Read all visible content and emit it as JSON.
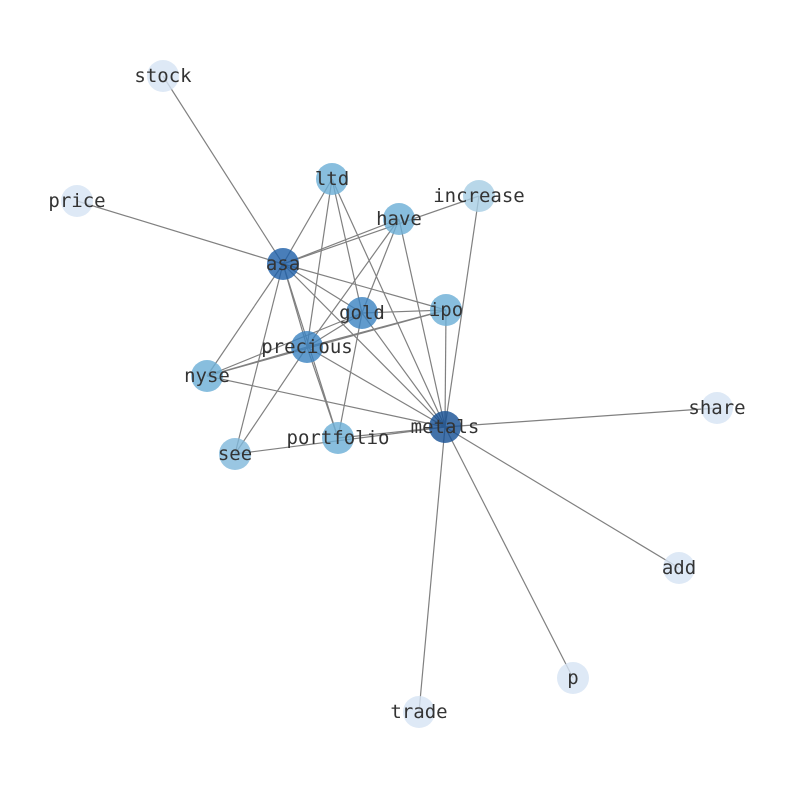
{
  "diagram": {
    "type": "network-graph",
    "edge_color": "#808080",
    "nodes": [
      {
        "id": "stock",
        "color": "#d6e4f4"
      },
      {
        "id": "price",
        "color": "#d6e4f4"
      },
      {
        "id": "ltd",
        "color": "#6aaed6"
      },
      {
        "id": "increase",
        "color": "#a6cde3"
      },
      {
        "id": "have",
        "color": "#6aaed6"
      },
      {
        "id": "asa",
        "color": "#1c5ea8"
      },
      {
        "id": "gold",
        "color": "#3a82c0"
      },
      {
        "id": "ipo",
        "color": "#6aaed6"
      },
      {
        "id": "precious",
        "color": "#3a82c0"
      },
      {
        "id": "nyse",
        "color": "#6aaed6"
      },
      {
        "id": "metals",
        "color": "#144f93"
      },
      {
        "id": "share",
        "color": "#d6e4f4"
      },
      {
        "id": "portfolio",
        "color": "#6aaed6"
      },
      {
        "id": "see",
        "color": "#7fb8db"
      },
      {
        "id": "add",
        "color": "#d6e4f4"
      },
      {
        "id": "p",
        "color": "#d6e4f4"
      },
      {
        "id": "trade",
        "color": "#d6e4f4"
      }
    ],
    "edges": [
      [
        "asa",
        "stock"
      ],
      [
        "asa",
        "price"
      ],
      [
        "asa",
        "ltd"
      ],
      [
        "asa",
        "have"
      ],
      [
        "asa",
        "increase"
      ],
      [
        "asa",
        "ipo"
      ],
      [
        "asa",
        "gold"
      ],
      [
        "asa",
        "metals"
      ],
      [
        "asa",
        "precious"
      ],
      [
        "asa",
        "portfolio"
      ],
      [
        "asa",
        "nyse"
      ],
      [
        "asa",
        "see"
      ],
      [
        "ltd",
        "precious"
      ],
      [
        "ltd",
        "gold"
      ],
      [
        "ltd",
        "metals"
      ],
      [
        "have",
        "precious"
      ],
      [
        "have",
        "gold"
      ],
      [
        "have",
        "metals"
      ],
      [
        "increase",
        "metals"
      ],
      [
        "ipo",
        "gold"
      ],
      [
        "ipo",
        "precious"
      ],
      [
        "ipo",
        "nyse"
      ],
      [
        "ipo",
        "metals"
      ],
      [
        "gold",
        "precious"
      ],
      [
        "gold",
        "metals"
      ],
      [
        "gold",
        "portfolio"
      ],
      [
        "gold",
        "nyse"
      ],
      [
        "precious",
        "nyse"
      ],
      [
        "precious",
        "metals"
      ],
      [
        "precious",
        "see"
      ],
      [
        "precious",
        "portfolio"
      ],
      [
        "nyse",
        "metals"
      ],
      [
        "metals",
        "share"
      ],
      [
        "metals",
        "add"
      ],
      [
        "metals",
        "p"
      ],
      [
        "metals",
        "trade"
      ],
      [
        "metals",
        "see"
      ],
      [
        "metals",
        "portfolio"
      ]
    ]
  }
}
